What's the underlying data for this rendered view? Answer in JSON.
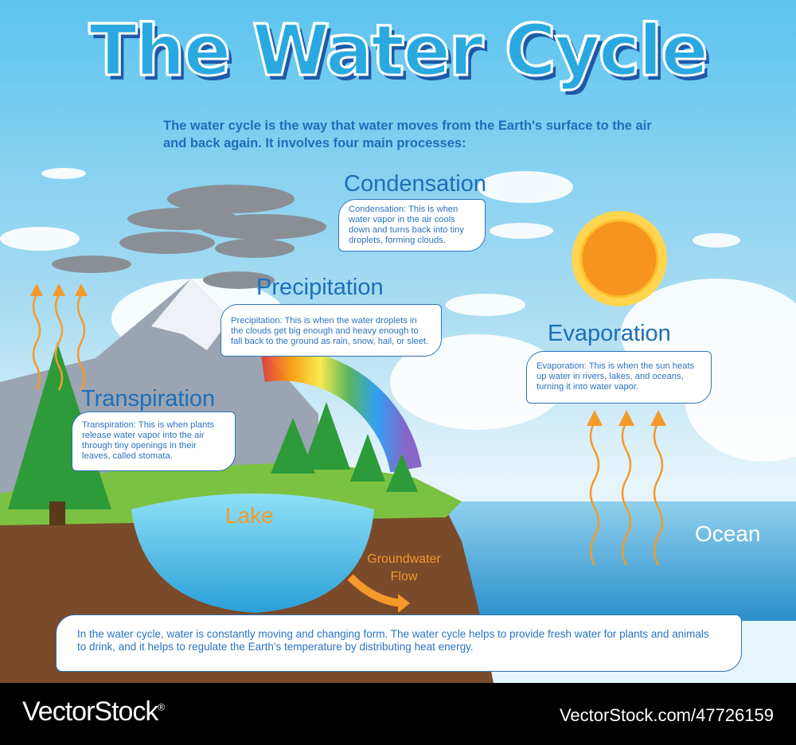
{
  "title": "The Water Cycle",
  "intro": "The water cycle is the way that water moves from the Earth's surface to the air and back again. It involves four main processes:",
  "processes": {
    "condensation": {
      "heading": "Condensation",
      "text": "Condensation: This is when water vapor in the air cools down and turns back into tiny droplets, forming clouds."
    },
    "precipitation": {
      "heading": "Precipitation",
      "text": "Precipitation: This is when the water droplets in the clouds get big enough and heavy enough to fall back to the ground as rain, snow, hail, or sleet."
    },
    "evaporation": {
      "heading": "Evaporation",
      "text": "Evaporation: This is when the sun heats up water in rivers, lakes, and oceans, turning it into water vapor."
    },
    "transpiration": {
      "heading": "Transpiration",
      "text": "Transpiration: This is when plants release water vapor into the air through tiny openings in their leaves, called stomata."
    }
  },
  "labels": {
    "lake": "Lake",
    "ocean": "Ocean",
    "groundwater_line1": "Groundwater",
    "groundwater_line2": "Flow"
  },
  "summary": "In the water cycle, water is constantly moving and changing form. The water cycle helps to provide fresh water for plants and animals to drink, and it helps to regulate the Earth's temperature by distributing heat energy.",
  "footer": {
    "brand": "VectorStock",
    "brand_mark": "®",
    "url": "VectorStock.com/47726159"
  },
  "colors": {
    "sky_top": "#5cc4ef",
    "heading": "#1d6fb8",
    "arrow": "#f59a2a",
    "sun": "#f7941d",
    "ocean": "#3aa6d8",
    "ground": "#7a4a2a"
  }
}
